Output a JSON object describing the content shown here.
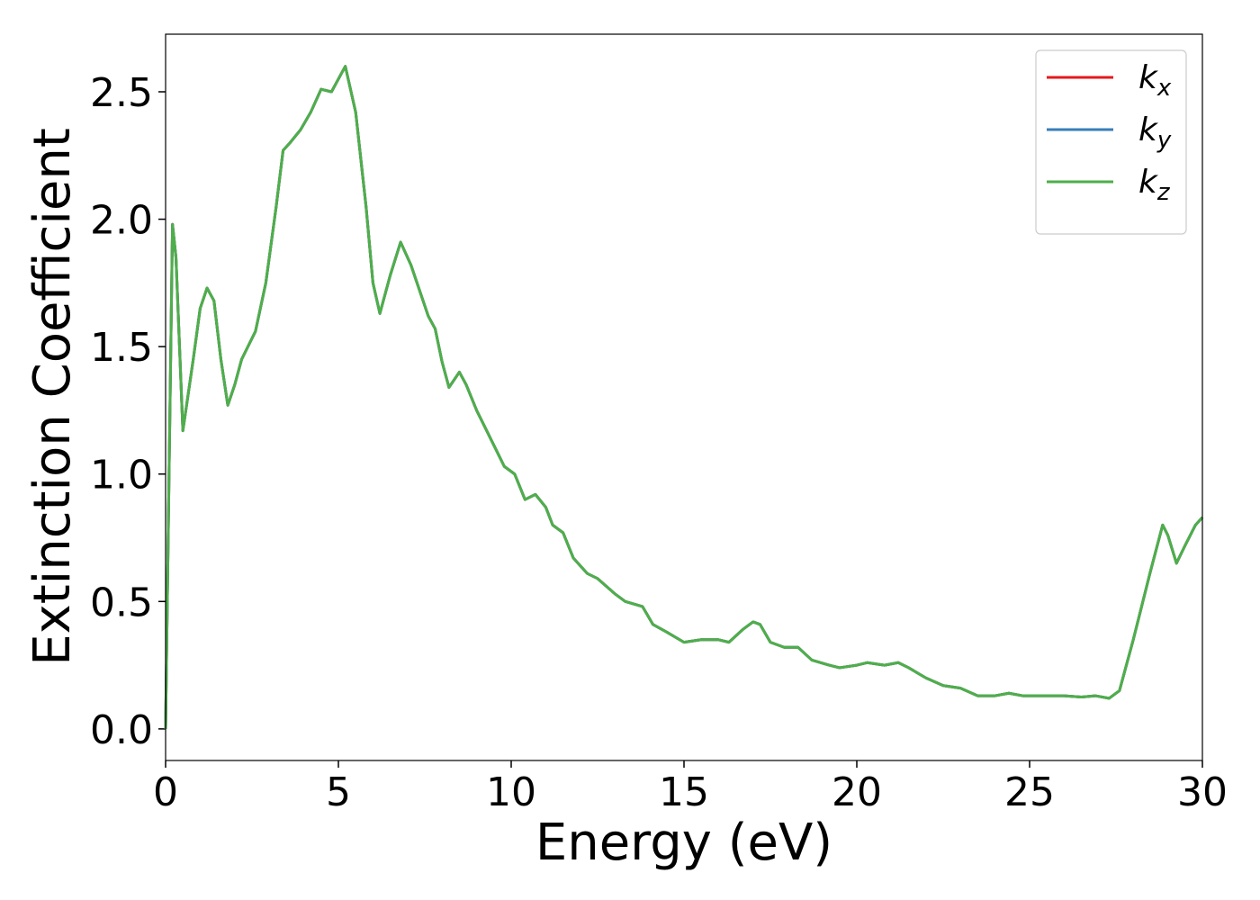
{
  "chart_data": {
    "type": "line",
    "xlabel": "Energy (eV)",
    "ylabel": "Extinction Coefficient",
    "x": [
      0,
      0.1,
      0.2,
      0.3,
      0.5,
      0.8,
      1.0,
      1.2,
      1.4,
      1.6,
      1.8,
      2.0,
      2.2,
      2.6,
      2.9,
      3.2,
      3.4,
      3.6,
      3.9,
      4.2,
      4.5,
      4.8,
      5.2,
      5.5,
      5.8,
      6.0,
      6.2,
      6.5,
      6.8,
      7.1,
      7.4,
      7.6,
      7.8,
      8.0,
      8.2,
      8.5,
      8.7,
      9.0,
      9.4,
      9.8,
      10.1,
      10.4,
      10.7,
      11.0,
      11.2,
      11.5,
      11.8,
      12.2,
      12.5,
      13.0,
      13.3,
      13.8,
      14.1,
      14.5,
      15.0,
      15.5,
      16.0,
      16.3,
      16.7,
      17.0,
      17.2,
      17.5,
      17.9,
      18.3,
      18.7,
      19.2,
      19.5,
      20.0,
      20.3,
      20.8,
      21.2,
      21.5,
      22.0,
      22.5,
      23.0,
      23.5,
      24.0,
      24.4,
      24.8,
      25.5,
      26.0,
      26.5,
      26.9,
      27.3,
      27.6,
      28.0,
      28.5,
      28.85,
      29.0,
      29.25,
      29.5,
      29.8,
      30.0
    ],
    "series": [
      {
        "name": "kx",
        "color": "#e41a1c",
        "values": [
          0.0,
          1.0,
          1.98,
          1.85,
          1.17,
          1.45,
          1.65,
          1.73,
          1.68,
          1.45,
          1.27,
          1.35,
          1.45,
          1.56,
          1.75,
          2.05,
          2.27,
          2.3,
          2.35,
          2.42,
          2.51,
          2.5,
          2.6,
          2.42,
          2.05,
          1.75,
          1.63,
          1.78,
          1.91,
          1.82,
          1.7,
          1.62,
          1.57,
          1.44,
          1.34,
          1.4,
          1.35,
          1.25,
          1.14,
          1.03,
          1.0,
          0.9,
          0.92,
          0.87,
          0.8,
          0.77,
          0.67,
          0.61,
          0.59,
          0.53,
          0.5,
          0.48,
          0.41,
          0.38,
          0.34,
          0.35,
          0.35,
          0.34,
          0.39,
          0.42,
          0.41,
          0.34,
          0.32,
          0.32,
          0.27,
          0.25,
          0.24,
          0.25,
          0.26,
          0.25,
          0.26,
          0.24,
          0.2,
          0.17,
          0.16,
          0.13,
          0.13,
          0.14,
          0.13,
          0.13,
          0.13,
          0.125,
          0.13,
          0.12,
          0.15,
          0.35,
          0.62,
          0.8,
          0.76,
          0.65,
          0.72,
          0.8,
          0.83
        ]
      },
      {
        "name": "ky",
        "color": "#377eb8",
        "values": [
          0.0,
          1.0,
          1.98,
          1.85,
          1.17,
          1.45,
          1.65,
          1.73,
          1.68,
          1.45,
          1.27,
          1.35,
          1.45,
          1.56,
          1.75,
          2.05,
          2.27,
          2.3,
          2.35,
          2.42,
          2.51,
          2.5,
          2.6,
          2.42,
          2.05,
          1.75,
          1.63,
          1.78,
          1.91,
          1.82,
          1.7,
          1.62,
          1.57,
          1.44,
          1.34,
          1.4,
          1.35,
          1.25,
          1.14,
          1.03,
          1.0,
          0.9,
          0.92,
          0.87,
          0.8,
          0.77,
          0.67,
          0.61,
          0.59,
          0.53,
          0.5,
          0.48,
          0.41,
          0.38,
          0.34,
          0.35,
          0.35,
          0.34,
          0.39,
          0.42,
          0.41,
          0.34,
          0.32,
          0.32,
          0.27,
          0.25,
          0.24,
          0.25,
          0.26,
          0.25,
          0.26,
          0.24,
          0.2,
          0.17,
          0.16,
          0.13,
          0.13,
          0.14,
          0.13,
          0.13,
          0.13,
          0.125,
          0.13,
          0.12,
          0.15,
          0.35,
          0.62,
          0.8,
          0.76,
          0.65,
          0.72,
          0.8,
          0.83
        ]
      },
      {
        "name": "kz",
        "color": "#4daf4a",
        "values": [
          0.0,
          1.0,
          1.98,
          1.85,
          1.17,
          1.45,
          1.65,
          1.73,
          1.68,
          1.45,
          1.27,
          1.35,
          1.45,
          1.56,
          1.75,
          2.05,
          2.27,
          2.3,
          2.35,
          2.42,
          2.51,
          2.5,
          2.6,
          2.42,
          2.05,
          1.75,
          1.63,
          1.78,
          1.91,
          1.82,
          1.7,
          1.62,
          1.57,
          1.44,
          1.34,
          1.4,
          1.35,
          1.25,
          1.14,
          1.03,
          1.0,
          0.9,
          0.92,
          0.87,
          0.8,
          0.77,
          0.67,
          0.61,
          0.59,
          0.53,
          0.5,
          0.48,
          0.41,
          0.38,
          0.34,
          0.35,
          0.35,
          0.34,
          0.39,
          0.42,
          0.41,
          0.34,
          0.32,
          0.32,
          0.27,
          0.25,
          0.24,
          0.25,
          0.26,
          0.25,
          0.26,
          0.24,
          0.2,
          0.17,
          0.16,
          0.13,
          0.13,
          0.14,
          0.13,
          0.13,
          0.13,
          0.125,
          0.13,
          0.12,
          0.15,
          0.35,
          0.62,
          0.8,
          0.76,
          0.65,
          0.72,
          0.8,
          0.83
        ]
      }
    ],
    "xlim": [
      0,
      30
    ],
    "xticks": [
      0,
      5,
      10,
      15,
      20,
      25,
      30
    ],
    "ylim": [
      -0.124,
      2.726
    ],
    "yticks": [
      {
        "value": 0,
        "label": "0.0"
      },
      0.5,
      {
        "value": 1,
        "label": "1.0"
      },
      1.5,
      {
        "value": 2,
        "label": "2.0"
      },
      2.5
    ],
    "grid": false,
    "legend": "upper right"
  }
}
